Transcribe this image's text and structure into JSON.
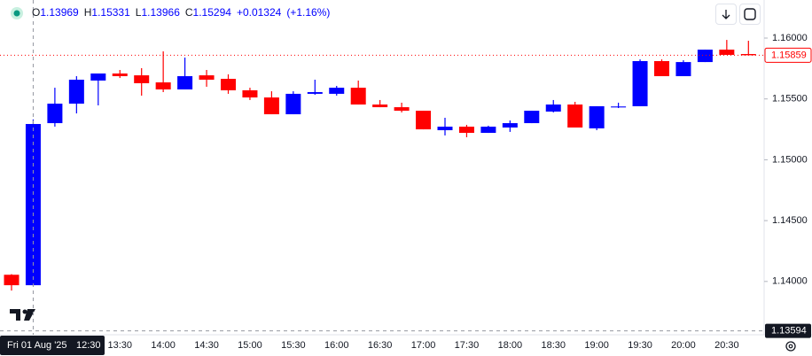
{
  "chart_data": {
    "type": "candlestick",
    "ohlc_legend": [
      {
        "label": "O",
        "value": 1.13969
      },
      {
        "label": "H",
        "value": 1.15331
      },
      {
        "label": "L",
        "value": 1.13966
      },
      {
        "label": "C",
        "value": 1.15294
      }
    ],
    "change": "+0.01324",
    "change_pct": "(+1.16%)",
    "categories": [
      null,
      null,
      null,
      null,
      null,
      "13:30",
      null,
      "14:00",
      null,
      "14:30",
      null,
      "15:00",
      null,
      "15:30",
      null,
      "16:00",
      null,
      "16:30",
      null,
      "17:00",
      null,
      "17:30",
      null,
      "18:00",
      null,
      "18:30",
      null,
      "19:00",
      null,
      "19:30",
      null,
      "20:00",
      null,
      "20:30",
      null
    ],
    "open": [
      1.14055,
      1.13969,
      1.15301,
      1.15461,
      1.15651,
      1.15709,
      1.15694,
      1.15636,
      1.15578,
      1.15694,
      1.15665,
      1.15571,
      1.15512,
      1.15374,
      1.15542,
      1.15542,
      1.15592,
      1.15454,
      1.15432,
      1.15403,
      1.15243,
      1.15272,
      1.15221,
      1.15265,
      1.15301,
      1.15396,
      1.15454,
      1.15258,
      1.1543,
      1.1544,
      1.15811,
      1.15687,
      1.15803,
      1.15905,
      1.15869
    ],
    "high": [
      1.1406,
      1.15331,
      1.15592,
      1.15687,
      1.15709,
      1.15738,
      1.15753,
      1.15891,
      1.1584,
      1.15738,
      1.15702,
      1.15592,
      1.15563,
      1.15563,
      1.15658,
      1.15607,
      1.15651,
      1.15491,
      1.15469,
      1.15403,
      1.15345,
      1.15287,
      1.1528,
      1.15323,
      1.15403,
      1.15491,
      1.15476,
      1.1544,
      1.15469,
      1.15825,
      1.15825,
      1.15818,
      1.15905,
      1.15985,
      1.15978
    ],
    "low": [
      1.13925,
      1.13966,
      1.15272,
      1.15381,
      1.15447,
      1.15672,
      1.15527,
      1.15556,
      1.15578,
      1.156,
      1.15542,
      1.15491,
      1.15374,
      1.15374,
      1.15534,
      1.15527,
      1.15454,
      1.15432,
      1.15389,
      1.1525,
      1.152,
      1.15185,
      1.15221,
      1.15229,
      1.15301,
      1.15389,
      1.15265,
      1.15243,
      1.15425,
      1.1544,
      1.15687,
      1.15687,
      1.15803,
      1.15862,
      1.15859
    ],
    "close": [
      1.13969,
      1.15294,
      1.15461,
      1.15658,
      1.15709,
      1.15687,
      1.15629,
      1.15578,
      1.15687,
      1.15658,
      1.15571,
      1.15512,
      1.15374,
      1.15542,
      1.15556,
      1.15592,
      1.15454,
      1.15432,
      1.15403,
      1.1525,
      1.15272,
      1.15221,
      1.15272,
      1.15301,
      1.15403,
      1.15454,
      1.15265,
      1.1544,
      1.15438,
      1.15811,
      1.15687,
      1.15803,
      1.15905,
      1.15862,
      1.15859
    ],
    "up_color": "#0000ff",
    "down_color": "#ff0000",
    "ylim": [
      1.13562,
      1.16313
    ],
    "yticks": [
      {
        "value": 1.14,
        "label": "1.14000"
      },
      {
        "value": 1.145,
        "label": "1.14500"
      },
      {
        "value": 1.15,
        "label": "1.15000"
      },
      {
        "value": 1.155,
        "label": "1.15500"
      },
      {
        "value": 1.16,
        "label": "1.16000"
      }
    ],
    "last_price": 1.15859,
    "crosshair": {
      "date": "Fri 01 Aug '25",
      "time": "12:30",
      "price": 1.13594
    }
  }
}
